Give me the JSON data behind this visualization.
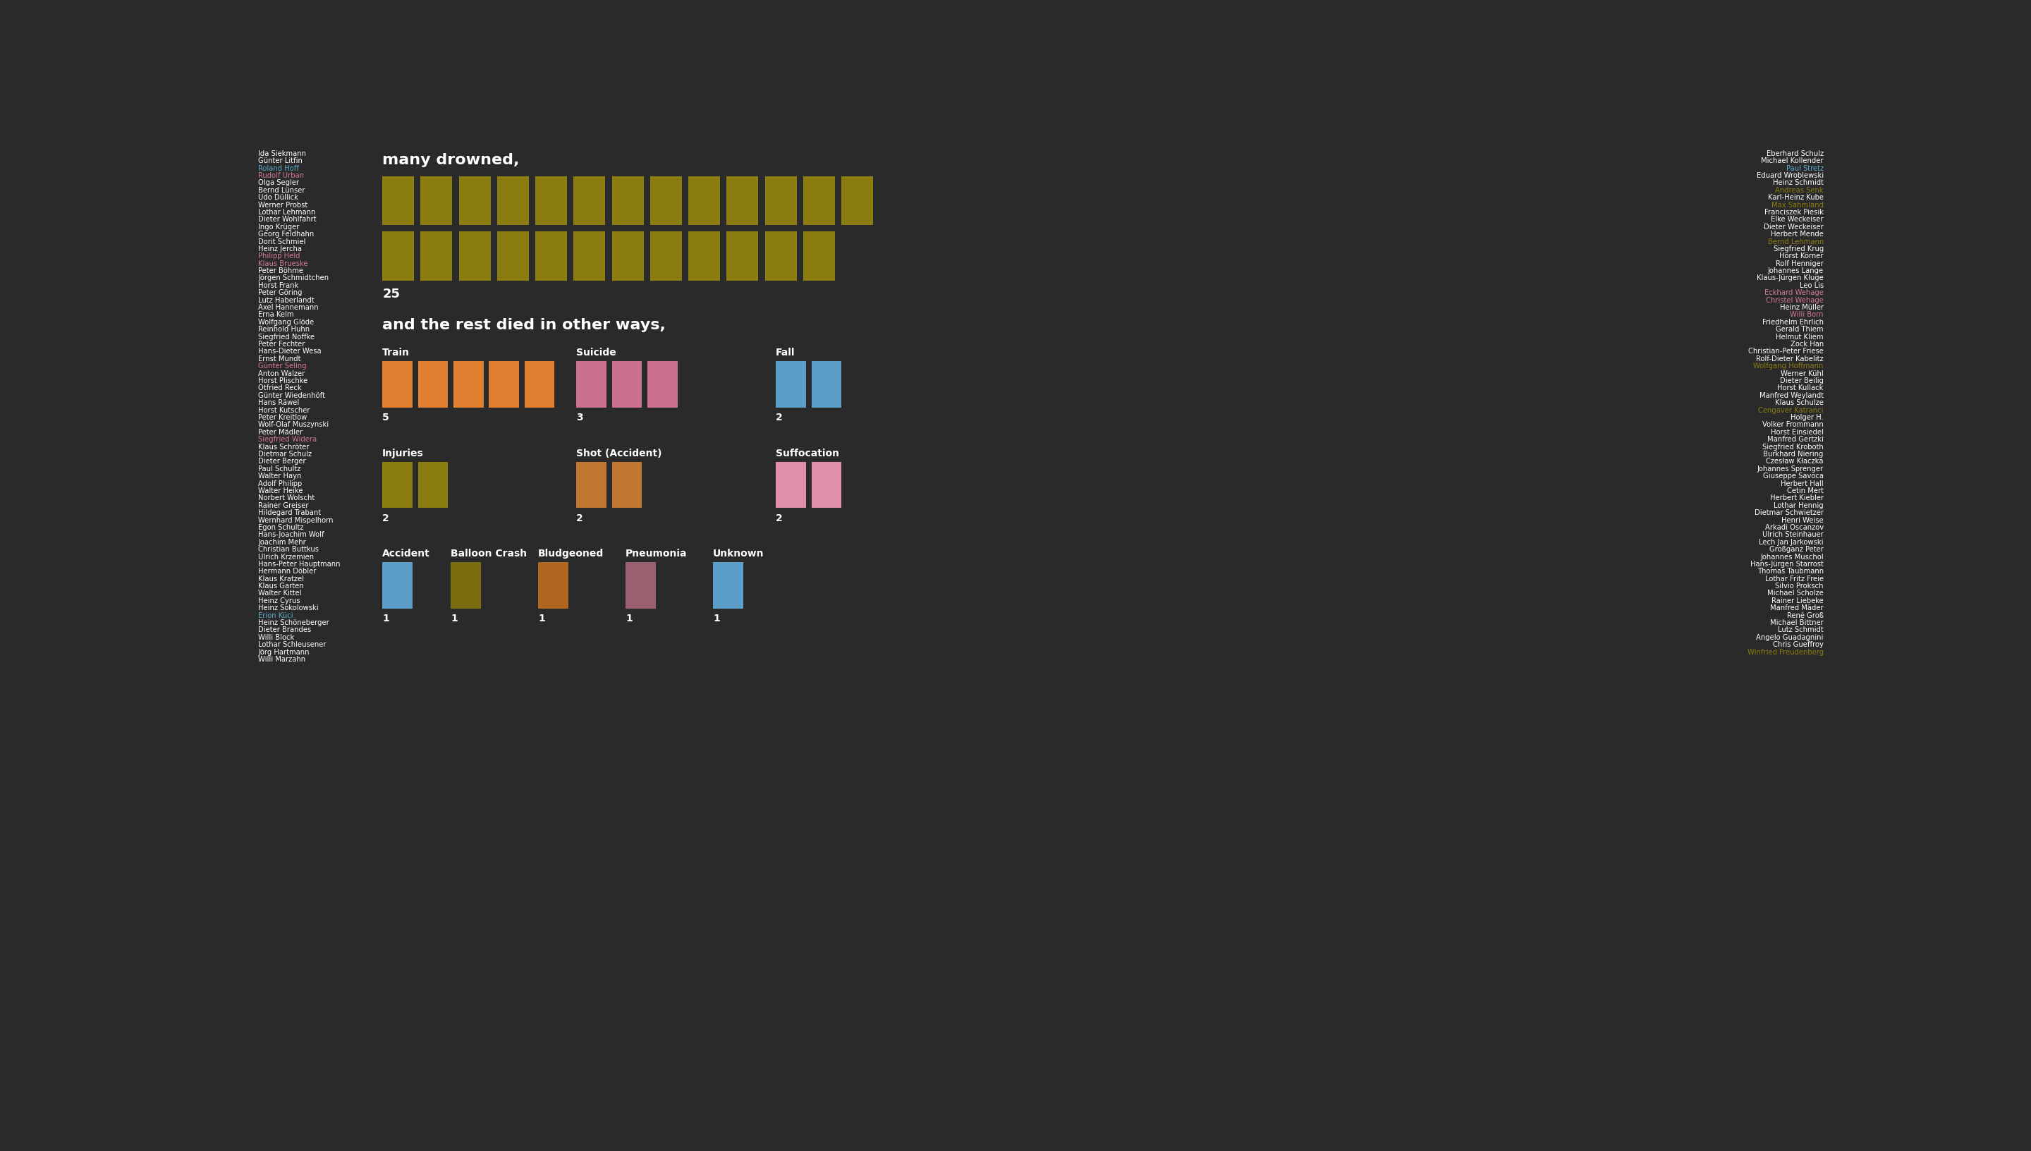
{
  "background_color": "#2a2a2a",
  "title_drowned": "many drowned,",
  "title_other": "and the rest died in other ways,",
  "drowned_count": 25,
  "drowned_color": "#8B7D10",
  "drowned_per_row": 13,
  "left_names": [
    {
      "name": "Ida Siekmann",
      "color": "#ffffff"
    },
    {
      "name": "Günter Litfin",
      "color": "#ffffff"
    },
    {
      "name": "Roland Hoff",
      "color": "#5DAACC"
    },
    {
      "name": "Rudolf Urban",
      "color": "#D4789A"
    },
    {
      "name": "Olga Segler",
      "color": "#ffffff"
    },
    {
      "name": "Bernd Lünser",
      "color": "#ffffff"
    },
    {
      "name": "Udo Düllick",
      "color": "#ffffff"
    },
    {
      "name": "Werner Probst",
      "color": "#ffffff"
    },
    {
      "name": "Lothar Lehmann",
      "color": "#ffffff"
    },
    {
      "name": "Dieter Wohlfahrt",
      "color": "#ffffff"
    },
    {
      "name": "Ingo Krüger",
      "color": "#ffffff"
    },
    {
      "name": "Georg Feldhahn",
      "color": "#ffffff"
    },
    {
      "name": "Dorit Schmiel",
      "color": "#ffffff"
    },
    {
      "name": "Heinz Jercha",
      "color": "#ffffff"
    },
    {
      "name": "Philipp Held",
      "color": "#D4789A"
    },
    {
      "name": "Klaus Brueske",
      "color": "#D4789A"
    },
    {
      "name": "Peter Böhme",
      "color": "#ffffff"
    },
    {
      "name": "Jörgen Schmidtchen",
      "color": "#ffffff"
    },
    {
      "name": "Horst Frank",
      "color": "#ffffff"
    },
    {
      "name": "Peter Göring",
      "color": "#ffffff"
    },
    {
      "name": "Lutz Haberlandt",
      "color": "#ffffff"
    },
    {
      "name": "Axel Hannemann",
      "color": "#ffffff"
    },
    {
      "name": "Erna Kelm",
      "color": "#ffffff"
    },
    {
      "name": "Wolfgang Glöde",
      "color": "#ffffff"
    },
    {
      "name": "Reinhold Huhn",
      "color": "#ffffff"
    },
    {
      "name": "Siegfried Noffke",
      "color": "#ffffff"
    },
    {
      "name": "Peter Fechter",
      "color": "#ffffff"
    },
    {
      "name": "Hans-Dieter Wesa",
      "color": "#ffffff"
    },
    {
      "name": "Ernst Mundt",
      "color": "#ffffff"
    },
    {
      "name": "Günter Seling",
      "color": "#D4789A"
    },
    {
      "name": "Anton Walzer",
      "color": "#ffffff"
    },
    {
      "name": "Horst Plischke",
      "color": "#ffffff"
    },
    {
      "name": "Otfried Reck",
      "color": "#ffffff"
    },
    {
      "name": "Günter Wiedenhöft",
      "color": "#ffffff"
    },
    {
      "name": "Hans Räwel",
      "color": "#ffffff"
    },
    {
      "name": "Horst Kutscher",
      "color": "#ffffff"
    },
    {
      "name": "Peter Kreitlow",
      "color": "#ffffff"
    },
    {
      "name": "Wolf-Olaf Muszynski",
      "color": "#ffffff"
    },
    {
      "name": "Peter Mädler",
      "color": "#ffffff"
    },
    {
      "name": "Siegfried Widera",
      "color": "#D4789A"
    },
    {
      "name": "Klaus Schröter",
      "color": "#ffffff"
    },
    {
      "name": "Dietmar Schulz",
      "color": "#ffffff"
    },
    {
      "name": "Dieter Berger",
      "color": "#ffffff"
    },
    {
      "name": "Paul Schultz",
      "color": "#ffffff"
    },
    {
      "name": "Walter Hayn",
      "color": "#ffffff"
    },
    {
      "name": "Adolf Philipp",
      "color": "#ffffff"
    },
    {
      "name": "Walter Heike",
      "color": "#ffffff"
    },
    {
      "name": "Norbert Wolscht",
      "color": "#ffffff"
    },
    {
      "name": "Rainer Greiser",
      "color": "#ffffff"
    },
    {
      "name": "Hildegard Trabant",
      "color": "#ffffff"
    },
    {
      "name": "Wernhard Mispelhorn",
      "color": "#ffffff"
    },
    {
      "name": "Egon Schultz",
      "color": "#ffffff"
    },
    {
      "name": "Hans-Joachim Wolf",
      "color": "#ffffff"
    },
    {
      "name": "Joachim Mehr",
      "color": "#ffffff"
    },
    {
      "name": "Christian Buttkus",
      "color": "#ffffff"
    },
    {
      "name": "Ulrich Krzemien",
      "color": "#ffffff"
    },
    {
      "name": "Hans-Peter Hauptmann",
      "color": "#ffffff"
    },
    {
      "name": "Hermann Döbler",
      "color": "#ffffff"
    },
    {
      "name": "Klaus Kratzel",
      "color": "#ffffff"
    },
    {
      "name": "Klaus Garten",
      "color": "#ffffff"
    },
    {
      "name": "Walter Kittel",
      "color": "#ffffff"
    },
    {
      "name": "Heinz Cyrus",
      "color": "#ffffff"
    },
    {
      "name": "Heinz Sokolowski",
      "color": "#ffffff"
    },
    {
      "name": "Erion Küci",
      "color": "#5DAACC"
    },
    {
      "name": "Heinz Schöneberger",
      "color": "#ffffff"
    },
    {
      "name": "Dieter Brandes",
      "color": "#ffffff"
    },
    {
      "name": "Willi Block",
      "color": "#ffffff"
    },
    {
      "name": "Lothar Schleusener",
      "color": "#ffffff"
    },
    {
      "name": "Jörg Hartmann",
      "color": "#ffffff"
    },
    {
      "name": "Willi Marzahn",
      "color": "#ffffff"
    }
  ],
  "right_names": [
    {
      "name": "Eberhard Schulz",
      "color": "#ffffff"
    },
    {
      "name": "Michael Kollender",
      "color": "#ffffff"
    },
    {
      "name": "Paul Stretz",
      "color": "#5DAACC"
    },
    {
      "name": "Eduard Wroblewski",
      "color": "#ffffff"
    },
    {
      "name": "Heinz Schmidt",
      "color": "#ffffff"
    },
    {
      "name": "Andreas Senk",
      "color": "#8B7D10"
    },
    {
      "name": "Karl-Heinz Kube",
      "color": "#ffffff"
    },
    {
      "name": "Max Sahmland",
      "color": "#8B7D10"
    },
    {
      "name": "Franciszek Piesik",
      "color": "#ffffff"
    },
    {
      "name": "Elke Weckeiser",
      "color": "#ffffff"
    },
    {
      "name": "Dieter Weckeiser",
      "color": "#ffffff"
    },
    {
      "name": "Herbert Mende",
      "color": "#ffffff"
    },
    {
      "name": "Bernd Lehmann",
      "color": "#8B7D10"
    },
    {
      "name": "Siegfried Krug",
      "color": "#ffffff"
    },
    {
      "name": "Horst Körner",
      "color": "#ffffff"
    },
    {
      "name": "Rolf Henniger",
      "color": "#ffffff"
    },
    {
      "name": "Johannes Lange",
      "color": "#ffffff"
    },
    {
      "name": "Klaus-Jürgen Kluge",
      "color": "#ffffff"
    },
    {
      "name": "Leo Lis",
      "color": "#ffffff"
    },
    {
      "name": "Eckhard Wehage",
      "color": "#D4789A"
    },
    {
      "name": "Christel Wehage",
      "color": "#D4789A"
    },
    {
      "name": "Heinz Müller",
      "color": "#ffffff"
    },
    {
      "name": "Willi Born",
      "color": "#D4789A"
    },
    {
      "name": "Friedhelm Ehrlich",
      "color": "#ffffff"
    },
    {
      "name": "Gerald Thiem",
      "color": "#ffffff"
    },
    {
      "name": "Helmut Kliem",
      "color": "#ffffff"
    },
    {
      "name": "Zock Han",
      "color": "#ffffff"
    },
    {
      "name": "Christian-Peter Friese",
      "color": "#ffffff"
    },
    {
      "name": "Rolf-Dieter Kabelitz",
      "color": "#ffffff"
    },
    {
      "name": "Wolfgang Hoffmann",
      "color": "#8B7D10"
    },
    {
      "name": "Werner Kühl",
      "color": "#ffffff"
    },
    {
      "name": "Dieter Beilig",
      "color": "#ffffff"
    },
    {
      "name": "Horst Kullack",
      "color": "#ffffff"
    },
    {
      "name": "Manfred Weylandt",
      "color": "#ffffff"
    },
    {
      "name": "Klaus Schulze",
      "color": "#ffffff"
    },
    {
      "name": "Cengaver Katranci",
      "color": "#8B7D10"
    },
    {
      "name": "Holger H.",
      "color": "#ffffff"
    },
    {
      "name": "Volker Frommann",
      "color": "#ffffff"
    },
    {
      "name": "Horst Einsiedel",
      "color": "#ffffff"
    },
    {
      "name": "Manfred Gertzki",
      "color": "#ffffff"
    },
    {
      "name": "Siegfried Kroboth",
      "color": "#ffffff"
    },
    {
      "name": "Burkhard Niering",
      "color": "#ffffff"
    },
    {
      "name": "Czesław Kłaczka",
      "color": "#ffffff"
    },
    {
      "name": "Johannes Sprenger",
      "color": "#ffffff"
    },
    {
      "name": "Giuseppe Savoca",
      "color": "#ffffff"
    },
    {
      "name": "Herbert Hall",
      "color": "#ffffff"
    },
    {
      "name": "Cetin Mert",
      "color": "#ffffff"
    },
    {
      "name": "Herbert Kiebler",
      "color": "#ffffff"
    },
    {
      "name": "Lothar Hennig",
      "color": "#ffffff"
    },
    {
      "name": "Dietmar Schwietzer",
      "color": "#ffffff"
    },
    {
      "name": "Henri Weise",
      "color": "#ffffff"
    },
    {
      "name": "Arkadi Oscanzov",
      "color": "#ffffff"
    },
    {
      "name": "Ulrich Steinhauer",
      "color": "#ffffff"
    },
    {
      "name": "Lech Jan Jarkowski",
      "color": "#ffffff"
    },
    {
      "name": "Großganz Peter",
      "color": "#ffffff"
    },
    {
      "name": "Johannes Muschol",
      "color": "#ffffff"
    },
    {
      "name": "Hans-Jürgen Starrost",
      "color": "#ffffff"
    },
    {
      "name": "Thomas Taubmann",
      "color": "#ffffff"
    },
    {
      "name": "Lothar Fritz Freie",
      "color": "#ffffff"
    },
    {
      "name": "Silvio Proksch",
      "color": "#ffffff"
    },
    {
      "name": "Michael Scholze",
      "color": "#ffffff"
    },
    {
      "name": "Rainer Liebeke",
      "color": "#ffffff"
    },
    {
      "name": "Manfred Mäder",
      "color": "#ffffff"
    },
    {
      "name": "René Groß",
      "color": "#ffffff"
    },
    {
      "name": "Michael Bittner",
      "color": "#ffffff"
    },
    {
      "name": "Lutz Schmidt",
      "color": "#ffffff"
    },
    {
      "name": "Angelo Guadagnini",
      "color": "#ffffff"
    },
    {
      "name": "Chris Gueffroy",
      "color": "#ffffff"
    },
    {
      "name": "Winfried Freudenberg",
      "color": "#8B7D10"
    }
  ],
  "category_rows": [
    [
      {
        "name": "Train",
        "count": 5,
        "color": "#E08030"
      },
      {
        "name": "Suicide",
        "count": 3,
        "color": "#CC7090"
      },
      {
        "name": "Fall",
        "count": 2,
        "color": "#5B9EC9"
      }
    ],
    [
      {
        "name": "Injuries",
        "count": 2,
        "color": "#8B7D10"
      },
      {
        "name": "Shot (Accident)",
        "count": 2,
        "color": "#C07830"
      },
      {
        "name": "Suffocation",
        "count": 2,
        "color": "#E090AA"
      }
    ],
    [
      {
        "name": "Accident",
        "count": 1,
        "color": "#5B9EC9"
      },
      {
        "name": "Balloon Crash",
        "count": 1,
        "color": "#7A6E10"
      },
      {
        "name": "Bludgeoned",
        "count": 1,
        "color": "#B06820"
      },
      {
        "name": "Pneumonia",
        "count": 1,
        "color": "#9A6070"
      },
      {
        "name": "Unknown",
        "count": 1,
        "color": "#5B9EC9"
      }
    ]
  ],
  "font_family": "DejaVu Sans"
}
